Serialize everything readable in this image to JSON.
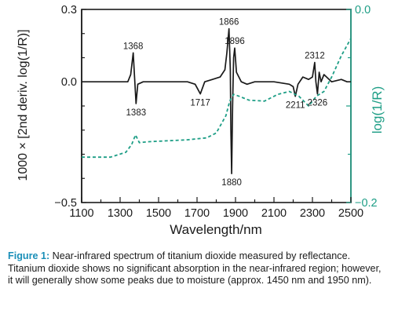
{
  "chart_data": {
    "type": "line",
    "xlabel": "Wavelength/nm",
    "ylabel_left": "1000 × [2nd deriv. log(1/R)]",
    "ylabel_right": "log(1/R)",
    "xlim": [
      1100,
      2500
    ],
    "ylim_left": [
      -0.5,
      0.3
    ],
    "ylim_right": [
      -0.2,
      0.0
    ],
    "x_ticks": [
      "1100",
      "1300",
      "1500",
      "1700",
      "1900",
      "2100",
      "2300",
      "2500"
    ],
    "y_ticks_left": [
      "0.3",
      "0.0",
      "−0.5"
    ],
    "y_ticks_right": [
      "0.0",
      "−0.2"
    ],
    "grid": false,
    "colors": {
      "second_derivative": "#1a1a1a",
      "log_reflectance": "#1e9e86",
      "right_axis": "#1e9e86"
    },
    "series": [
      {
        "axis": "left",
        "style": "solid",
        "x": [
          1100,
          1300,
          1340,
          1355,
          1368,
          1375,
          1383,
          1392,
          1420,
          1500,
          1650,
          1690,
          1717,
          1740,
          1780,
          1820,
          1845,
          1855,
          1866,
          1873,
          1876,
          1880,
          1885,
          1890,
          1896,
          1905,
          1930,
          1960,
          2000,
          2100,
          2180,
          2200,
          2211,
          2225,
          2250,
          2280,
          2300,
          2312,
          2318,
          2326,
          2335,
          2345,
          2360,
          2400,
          2450,
          2480,
          2500
        ],
        "y": [
          0.0,
          0.0,
          0.0,
          0.03,
          0.12,
          0.02,
          -0.09,
          -0.01,
          0.0,
          0.0,
          0.0,
          -0.01,
          -0.05,
          0.0,
          0.01,
          0.02,
          0.05,
          0.12,
          0.22,
          0.05,
          -0.2,
          -0.38,
          -0.1,
          0.1,
          0.14,
          0.04,
          0.0,
          -0.01,
          0.0,
          0.0,
          -0.01,
          -0.02,
          -0.06,
          -0.01,
          0.02,
          0.01,
          0.02,
          0.08,
          0.0,
          -0.05,
          0.04,
          0.0,
          0.03,
          0.0,
          0.01,
          0.0,
          0.0
        ]
      },
      {
        "axis": "right",
        "style": "dashed",
        "x": [
          1100,
          1250,
          1330,
          1360,
          1380,
          1400,
          1450,
          1550,
          1650,
          1700,
          1750,
          1800,
          1850,
          1870,
          1890,
          1920,
          1970,
          2050,
          2120,
          2180,
          2230,
          2280,
          2320,
          2360,
          2400,
          2450,
          2500
        ],
        "y": [
          -0.153,
          -0.153,
          -0.148,
          -0.14,
          -0.13,
          -0.138,
          -0.137,
          -0.136,
          -0.135,
          -0.134,
          -0.133,
          -0.128,
          -0.11,
          -0.095,
          -0.088,
          -0.09,
          -0.094,
          -0.095,
          -0.088,
          -0.085,
          -0.09,
          -0.1,
          -0.09,
          -0.085,
          -0.07,
          -0.048,
          -0.03
        ]
      }
    ],
    "annotations": [
      {
        "text": "1368",
        "x": 1368,
        "y": 0.12
      },
      {
        "text": "1383",
        "x": 1383,
        "y": -0.09
      },
      {
        "text": "1717",
        "x": 1717,
        "y": -0.05
      },
      {
        "text": "1866",
        "x": 1866,
        "y": 0.22
      },
      {
        "text": "1896",
        "x": 1896,
        "y": 0.14
      },
      {
        "text": "1880",
        "x": 1880,
        "y": -0.38
      },
      {
        "text": "2211",
        "x": 2211,
        "y": -0.06
      },
      {
        "text": "2312",
        "x": 2312,
        "y": 0.08
      },
      {
        "text": "2326",
        "x": 2326,
        "y": -0.05
      }
    ]
  },
  "caption": {
    "label": "Figure 1:",
    "text": " Near-infrared spectrum of titanium dioxide measured by reflectance. Titanium dioxide shows no significant absorption in the near-infrared region; however, it will generally show some peaks due to moisture (approx. 1450 nm and 1950 nm)."
  }
}
